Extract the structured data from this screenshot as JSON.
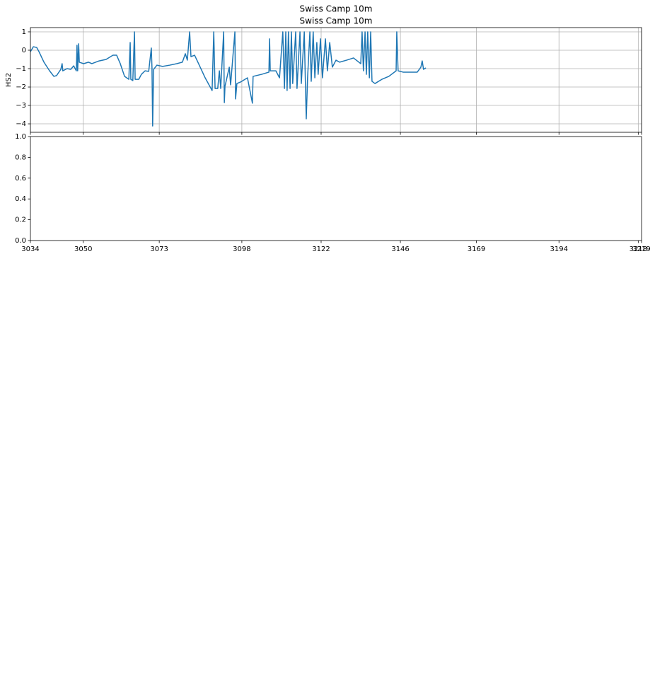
{
  "chart_data": [
    {
      "type": "line",
      "title": "Swiss Camp 10m",
      "subtitle": "Swiss Camp 10m",
      "y_label": "HS2",
      "grid": true,
      "xlim": [
        3034,
        3219
      ],
      "xticks": [
        3034,
        3050,
        3073,
        3098,
        3122,
        3146,
        3169,
        3194,
        3218,
        3219
      ],
      "ylim": [
        -4.46,
        1.23
      ],
      "yticks": [
        {
          "value": -4,
          "label": "−4"
        },
        {
          "value": -3,
          "label": "−3"
        },
        {
          "value": -2,
          "label": "−2"
        },
        {
          "value": -1,
          "label": "−1"
        },
        0,
        1
      ],
      "x": [
        3034.0,
        3034.9,
        3035.9,
        3036.6,
        3038.1,
        3039.8,
        3041.1,
        3041.9,
        3043.2,
        3043.6,
        3043.8,
        3045.1,
        3046.2,
        3047.1,
        3047.9,
        3048.1,
        3048.3,
        3048.6,
        3048.8,
        3050.1,
        3051.6,
        3052.6,
        3054.8,
        3056.9,
        3059.0,
        3060.1,
        3061.2,
        3062.5,
        3063.8,
        3064.2,
        3064.4,
        3065.0,
        3065.5,
        3065.7,
        3066.8,
        3067.6,
        3068.7,
        3069.8,
        3070.6,
        3070.8,
        3071.0,
        3071.3,
        3072.3,
        3074.0,
        3076.2,
        3078.3,
        3080.0,
        3080.9,
        3081.5,
        3082.2,
        3082.6,
        3083.7,
        3084.7,
        3086.9,
        3089.0,
        3089.5,
        3089.9,
        3090.7,
        3091.2,
        3091.6,
        3092.5,
        3092.7,
        3092.9,
        3094.2,
        3094.6,
        3095.9,
        3096.1,
        3096.5,
        3097.6,
        3099.7,
        3101.2,
        3101.4,
        3104.0,
        3106.2,
        3106.4,
        3106.6,
        3108.3,
        3109.4,
        3110.4,
        3110.9,
        3111.3,
        3111.7,
        3112.1,
        3112.6,
        3113.0,
        3113.4,
        3114.3,
        3114.7,
        3115.6,
        3116.0,
        3116.9,
        3117.3,
        3117.5,
        3117.9,
        3118.6,
        3119.0,
        3119.6,
        3120.1,
        3120.7,
        3121.1,
        3121.8,
        3122.4,
        3123.3,
        3123.9,
        3124.6,
        3125.4,
        3126.5,
        3127.6,
        3129.7,
        3131.8,
        3134.0,
        3134.4,
        3134.8,
        3135.3,
        3135.7,
        3136.1,
        3136.6,
        3137.0,
        3137.4,
        3138.3,
        3140.4,
        3142.5,
        3144.7,
        3144.9,
        3145.3,
        3146.8,
        3149.0,
        3151.1,
        3152.2,
        3152.6,
        3153.0,
        3153.7
      ],
      "series": [
        {
          "name": "HS2",
          "color": "#1f77b4",
          "values": [
            -0.08,
            0.19,
            0.15,
            -0.08,
            -0.65,
            -1.12,
            -1.42,
            -1.38,
            -1.04,
            -0.73,
            -1.12,
            -1.0,
            -1.04,
            -0.85,
            -1.12,
            0.27,
            -1.12,
            0.35,
            -0.65,
            -0.73,
            -0.65,
            -0.73,
            -0.58,
            -0.5,
            -0.27,
            -0.27,
            -0.73,
            -1.42,
            -1.58,
            0.42,
            -1.58,
            -1.65,
            1.0,
            -1.58,
            -1.58,
            -1.31,
            -1.12,
            -1.15,
            0.12,
            -0.96,
            -4.12,
            -1.04,
            -0.81,
            -0.88,
            -0.81,
            -0.73,
            -0.65,
            -0.19,
            -0.54,
            1.0,
            -0.35,
            -0.27,
            -0.65,
            -1.5,
            -2.19,
            1.0,
            -2.08,
            -2.08,
            -1.12,
            -2.08,
            1.0,
            -2.85,
            -1.96,
            -0.92,
            -1.88,
            1.0,
            -2.65,
            -1.81,
            -1.73,
            -1.5,
            -2.88,
            -1.42,
            -1.31,
            -1.19,
            0.62,
            -1.12,
            -1.12,
            -1.5,
            1.0,
            -2.08,
            1.0,
            -2.19,
            1.0,
            -2.08,
            1.0,
            -1.81,
            1.0,
            -2.08,
            1.0,
            -1.81,
            1.0,
            -2.27,
            -3.73,
            -1.5,
            1.0,
            -1.69,
            1.0,
            -1.5,
            0.42,
            -1.31,
            0.62,
            -1.5,
            0.62,
            -1.12,
            0.42,
            -0.92,
            -0.54,
            -0.65,
            -0.54,
            -0.42,
            -0.73,
            1.0,
            -1.12,
            1.0,
            -1.31,
            1.0,
            -1.5,
            1.0,
            -1.69,
            -1.81,
            -1.58,
            -1.42,
            -1.12,
            1.0,
            -1.12,
            -1.19,
            -1.19,
            -1.19,
            -0.92,
            -0.58,
            -1.04,
            -0.96
          ]
        }
      ]
    },
    {
      "type": "line",
      "grid": false,
      "xlim": [
        3034,
        3219
      ],
      "xticks": [
        3034,
        3050,
        3073,
        3098,
        3122,
        3146,
        3169,
        3194,
        3218,
        3219
      ],
      "ylim": [
        0,
        1
      ],
      "yticks": [
        {
          "value": 0,
          "label": "0.0"
        },
        {
          "value": 0.2,
          "label": "0.2"
        },
        {
          "value": 0.4,
          "label": "0.4"
        },
        {
          "value": 0.6,
          "label": "0.6"
        },
        {
          "value": 0.8,
          "label": "0.8"
        },
        {
          "value": 1,
          "label": "1.0"
        }
      ]
    }
  ]
}
